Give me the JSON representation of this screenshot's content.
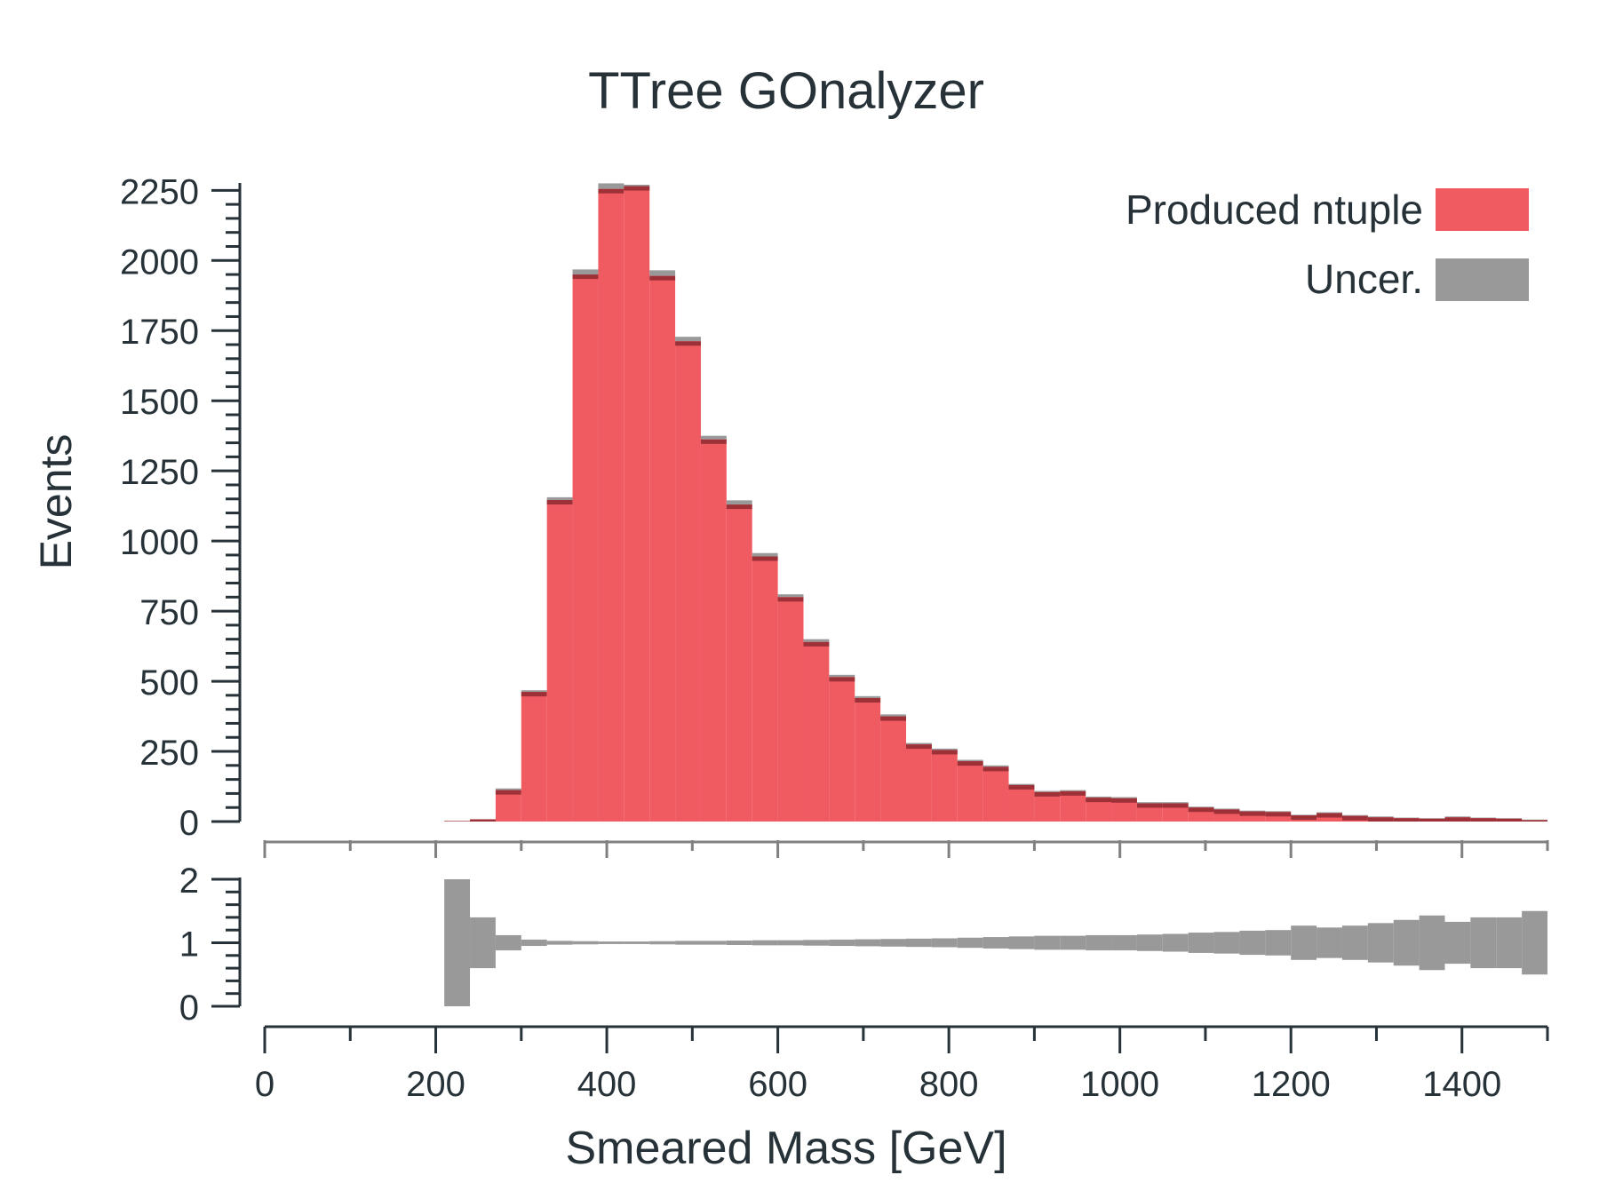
{
  "chart_data": {
    "type": "bar",
    "title": "TTree GOnalyzer",
    "xlabel": "Smeared Mass [GeV]",
    "ylabel": "Events",
    "x_edges": [
      210,
      240,
      270,
      300,
      330,
      360,
      390,
      420,
      450,
      480,
      510,
      540,
      570,
      600,
      630,
      660,
      690,
      720,
      750,
      780,
      810,
      840,
      870,
      900,
      930,
      960,
      990,
      1020,
      1050,
      1080,
      1110,
      1140,
      1170,
      1200,
      1230,
      1260,
      1290,
      1320,
      1350,
      1380,
      1410,
      1440,
      1470,
      1500
    ],
    "series": [
      {
        "name": "Produced ntuple",
        "color": "#f05a61",
        "values": [
          2,
          8,
          112,
          462,
          1146,
          1950,
          2255,
          2265,
          1945,
          1712,
          1362,
          1130,
          945,
          800,
          640,
          515,
          440,
          375,
          275,
          255,
          215,
          195,
          130,
          105,
          108,
          85,
          83,
          65,
          65,
          50,
          43,
          36,
          34,
          22,
          30,
          20,
          15,
          12,
          10,
          15,
          12,
          10,
          5
        ]
      }
    ],
    "uncertainty": {
      "name": "Uncer.",
      "color": "#999999",
      "top_values": [
        2,
        8,
        118,
        468,
        1156,
        1968,
        2275,
        2270,
        1965,
        1728,
        1375,
        1145,
        957,
        810,
        650,
        523,
        447,
        382,
        280,
        260,
        220,
        200,
        134,
        109,
        112,
        89,
        87,
        69,
        69,
        53,
        46,
        39,
        37,
        24,
        33,
        23,
        18,
        14,
        12,
        18,
        14,
        12,
        7
      ],
      "ratio_low": [
        0,
        0.6,
        0.88,
        0.95,
        0.97,
        0.975,
        0.98,
        0.98,
        0.975,
        0.97,
        0.97,
        0.965,
        0.96,
        0.96,
        0.955,
        0.95,
        0.945,
        0.94,
        0.935,
        0.93,
        0.92,
        0.91,
        0.9,
        0.89,
        0.89,
        0.88,
        0.88,
        0.87,
        0.86,
        0.84,
        0.83,
        0.81,
        0.8,
        0.73,
        0.76,
        0.73,
        0.69,
        0.64,
        0.57,
        0.67,
        0.6,
        0.6,
        0.5
      ],
      "ratio_high": [
        2.0,
        1.4,
        1.12,
        1.05,
        1.03,
        1.025,
        1.02,
        1.02,
        1.025,
        1.03,
        1.03,
        1.035,
        1.04,
        1.04,
        1.045,
        1.05,
        1.055,
        1.06,
        1.065,
        1.07,
        1.08,
        1.09,
        1.1,
        1.11,
        1.11,
        1.12,
        1.12,
        1.13,
        1.14,
        1.16,
        1.17,
        1.19,
        1.2,
        1.27,
        1.24,
        1.27,
        1.31,
        1.36,
        1.43,
        1.33,
        1.4,
        1.4,
        1.5
      ]
    },
    "xlim": [
      0,
      1500
    ],
    "ylim": [
      0,
      2270
    ],
    "ratio_ylim": [
      0,
      2
    ],
    "x_ticks": [
      0,
      200,
      400,
      600,
      800,
      1000,
      1200,
      1400
    ],
    "y_ticks": [
      0,
      250,
      500,
      750,
      1000,
      1250,
      1500,
      1750,
      2000,
      2250
    ],
    "ratio_ticks": [
      0,
      1,
      2
    ],
    "legend_position": "top-right",
    "grid": false
  }
}
